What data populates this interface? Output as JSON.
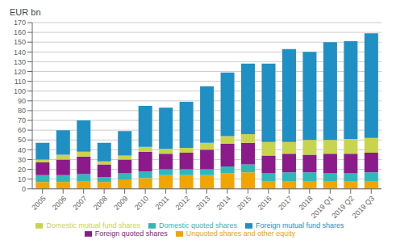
{
  "chart_data": {
    "type": "bar",
    "stacked": true,
    "ylabel": "EUR bn",
    "categories": [
      "2005",
      "2006",
      "2007",
      "2008",
      "2009",
      "2010",
      "2011",
      "2012",
      "2013",
      "2014",
      "2015",
      "2016",
      "2017",
      "2018",
      "2019 Q1",
      "2019 Q2",
      "2019 Q3"
    ],
    "series": [
      {
        "name": "Unquoted shares and other equity",
        "color": "#f0a500",
        "values": [
          7,
          7,
          8,
          7,
          9,
          11,
          14,
          14,
          14,
          16,
          17,
          8,
          8,
          8,
          8,
          8,
          8
        ]
      },
      {
        "name": "Domestic quoted shares",
        "color": "#30b8b8",
        "values": [
          7,
          7,
          7,
          5,
          7,
          7,
          6,
          6,
          6,
          7,
          8,
          8,
          9,
          9,
          8,
          8,
          9
        ]
      },
      {
        "name": "Foreign quoted shares",
        "color": "#8b1a8b",
        "values": [
          13,
          16,
          18,
          13,
          14,
          20,
          16,
          17,
          20,
          23,
          22,
          18,
          19,
          18,
          20,
          20,
          20
        ]
      },
      {
        "name": "Domestic mutual fund shares",
        "color": "#c8d44e",
        "values": [
          3,
          5,
          5,
          3,
          4,
          5,
          5,
          5,
          7,
          8,
          9,
          14,
          12,
          15,
          14,
          15,
          15
        ]
      },
      {
        "name": "Foreign mutual fund shares",
        "color": "#1f8fc4",
        "values": [
          17,
          25,
          32,
          19,
          25,
          42,
          42,
          47,
          58,
          65,
          72,
          80,
          95,
          90,
          100,
          100,
          107
        ]
      }
    ],
    "ylim": [
      0,
      170
    ],
    "yticks": [
      0,
      10,
      20,
      30,
      40,
      50,
      60,
      70,
      80,
      90,
      100,
      110,
      120,
      130,
      140,
      150,
      160,
      170
    ],
    "grid": true,
    "legend": "bottom"
  }
}
